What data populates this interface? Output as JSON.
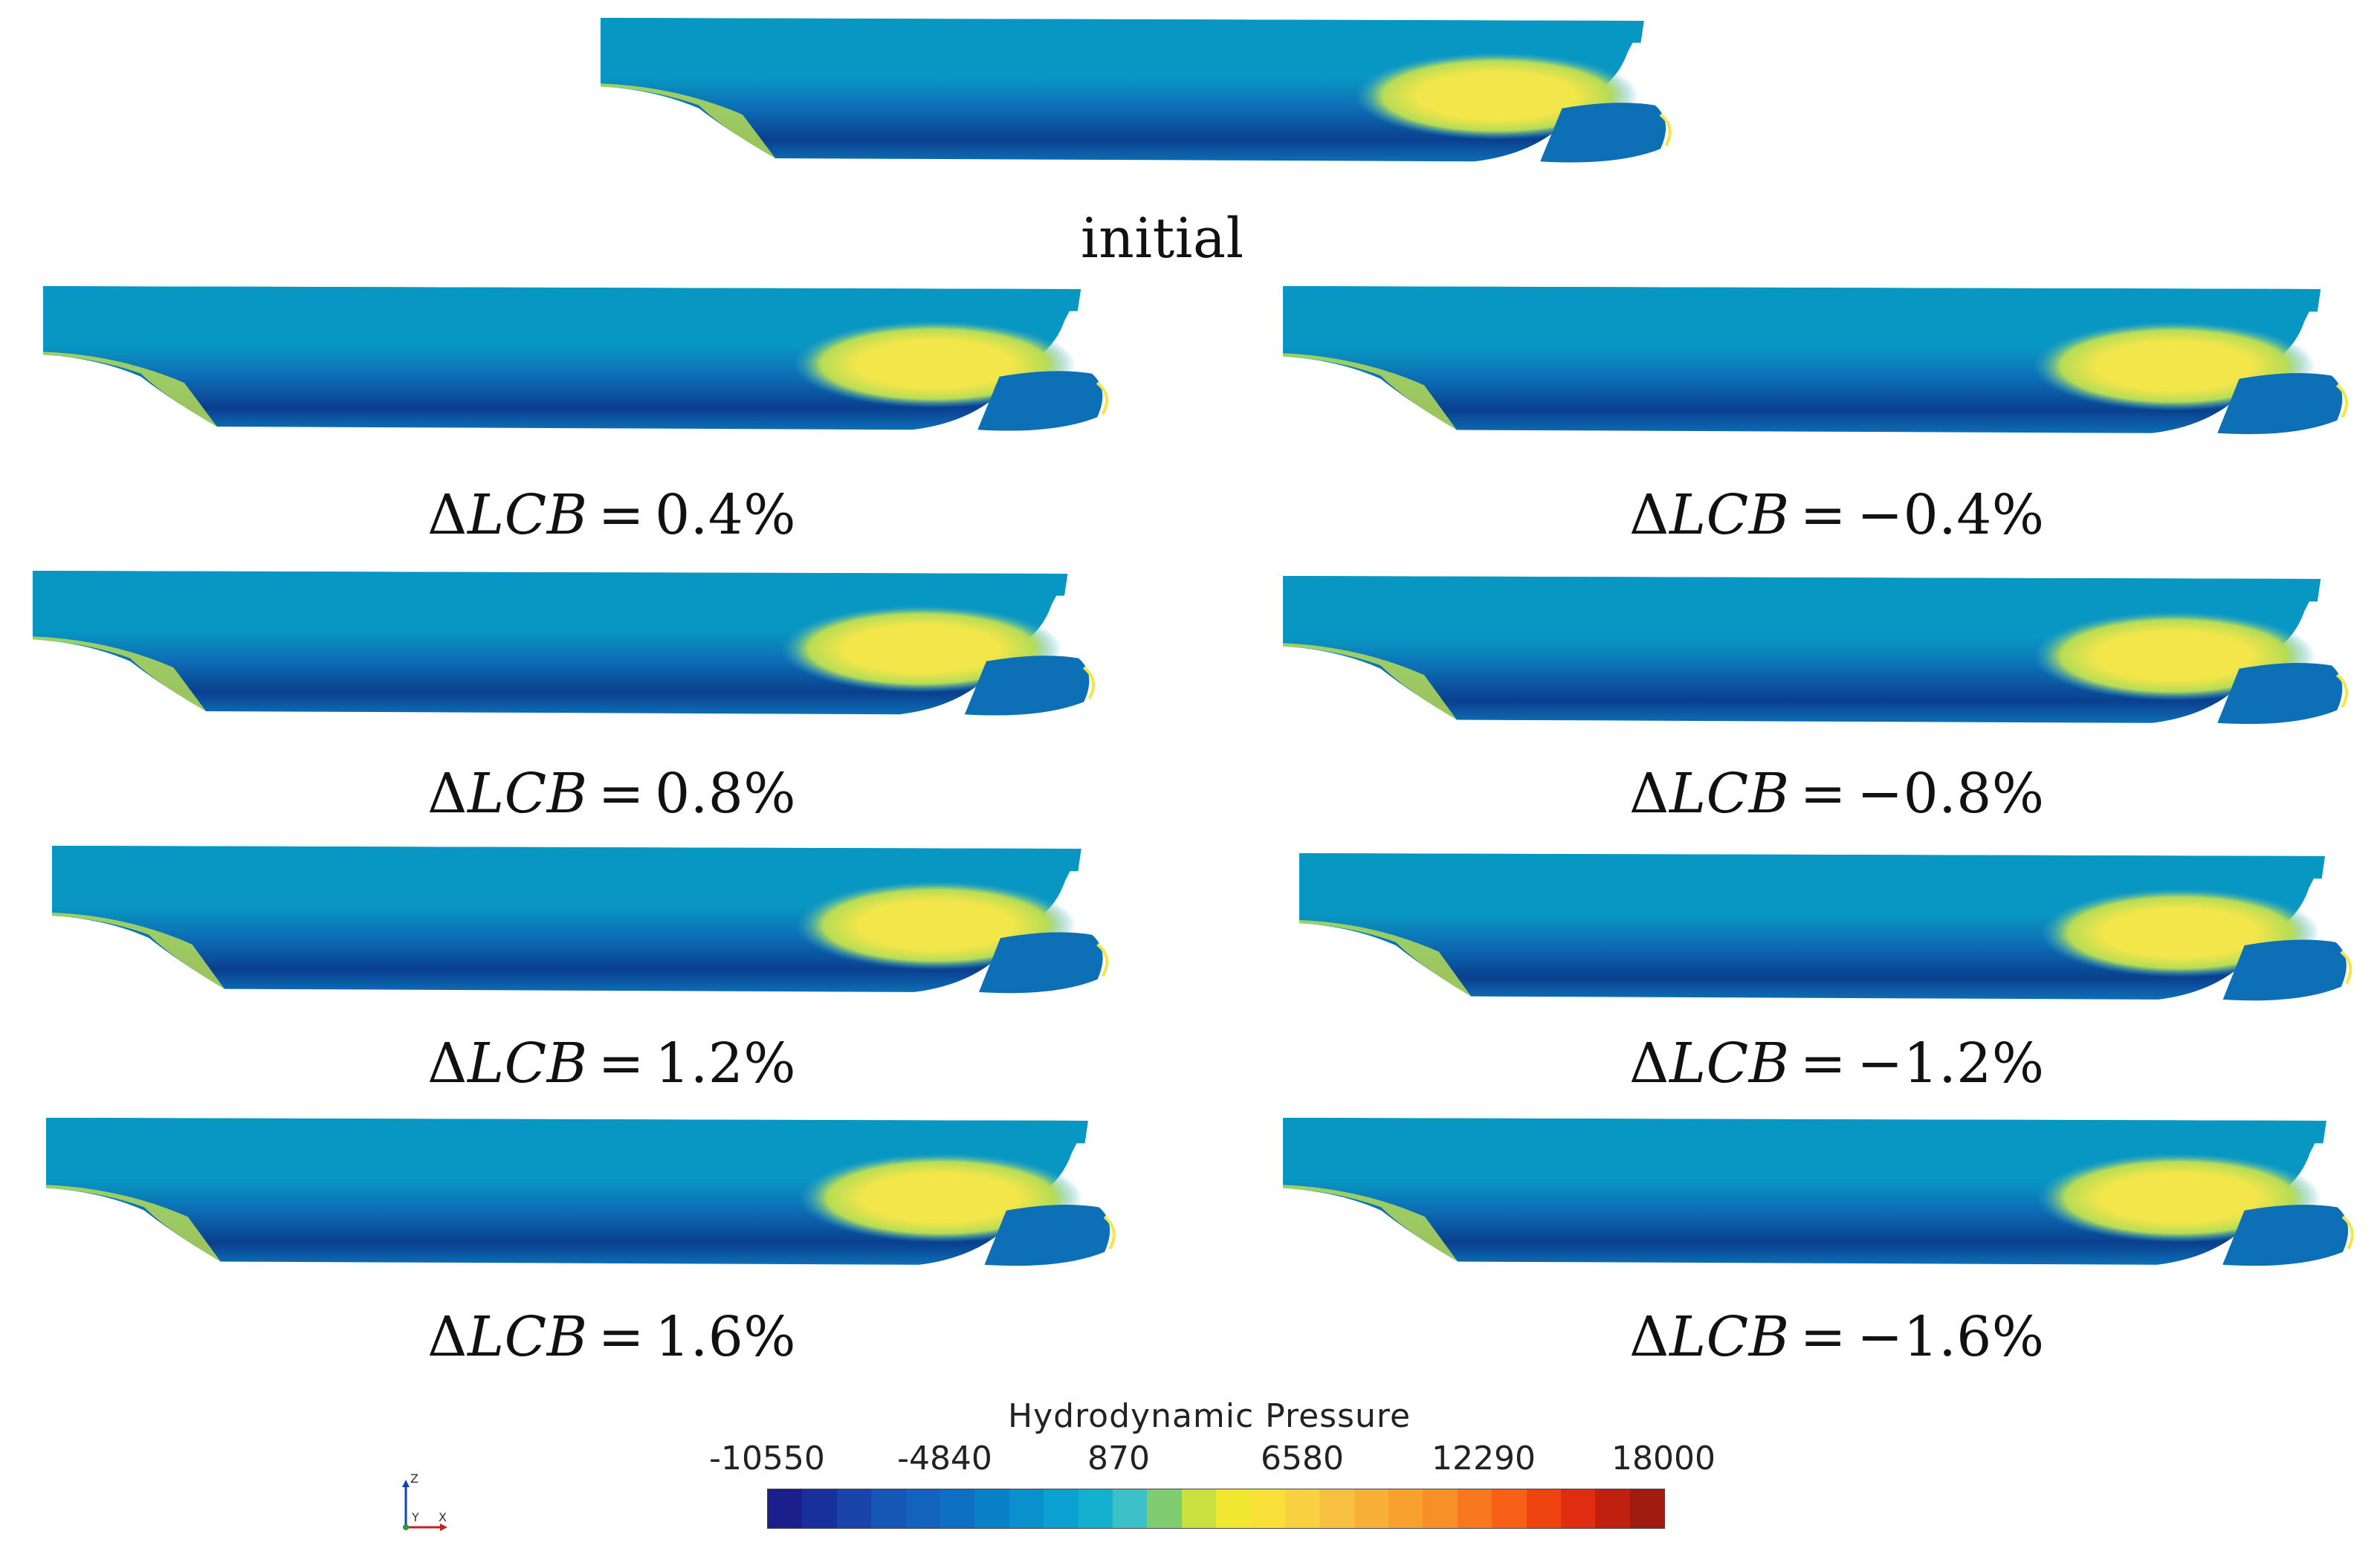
{
  "figure": {
    "panels": [
      {
        "id": "initial",
        "caption": "initial"
      },
      {
        "id": "p04",
        "symbol": "Δ",
        "var": "LCB",
        "eq": "=",
        "value": "0.4%"
      },
      {
        "id": "m04",
        "symbol": "Δ",
        "var": "LCB",
        "eq": "=",
        "value": "−0.4%"
      },
      {
        "id": "p08",
        "symbol": "Δ",
        "var": "LCB",
        "eq": "=",
        "value": "0.8%"
      },
      {
        "id": "m08",
        "symbol": "Δ",
        "var": "LCB",
        "eq": "=",
        "value": "−0.8%"
      },
      {
        "id": "p12",
        "symbol": "Δ",
        "var": "LCB",
        "eq": "=",
        "value": "1.2%"
      },
      {
        "id": "m12",
        "symbol": "Δ",
        "var": "LCB",
        "eq": "=",
        "value": "−1.2%"
      },
      {
        "id": "p16",
        "symbol": "Δ",
        "var": "LCB",
        "eq": "=",
        "value": "1.6%"
      },
      {
        "id": "m16",
        "symbol": "Δ",
        "var": "LCB",
        "eq": "=",
        "value": "−1.6%"
      }
    ]
  },
  "legend": {
    "title": "Hydrodynamic Pressure",
    "ticks": [
      "-10550",
      "-4840",
      "870",
      "6580",
      "12290",
      "18000"
    ],
    "colors": [
      "#1a1f8c",
      "#18309c",
      "#1a44aa",
      "#1656b4",
      "#1263bc",
      "#0e70c2",
      "#0a80c8",
      "#0a90cc",
      "#0aa0d0",
      "#14b0d0",
      "#3ec0c8",
      "#80cc70",
      "#c8e040",
      "#f0e830",
      "#f8e038",
      "#f8d040",
      "#f8c040",
      "#f8b038",
      "#f8a030",
      "#f89028",
      "#f87820",
      "#f86018",
      "#f04410",
      "#e02c10",
      "#c02010",
      "#a01c10"
    ],
    "axis_labels": {
      "z": "Z",
      "y": "Y",
      "x": "X"
    }
  },
  "colors": {
    "hull_top": "#0896c2",
    "hull_mid": "#0d6fb6",
    "hull_deep": "#0a3f8e",
    "hull_light": "#2aa8d2",
    "high_pressure": "#f2e64a",
    "mid_pressure": "#b6dc56"
  }
}
